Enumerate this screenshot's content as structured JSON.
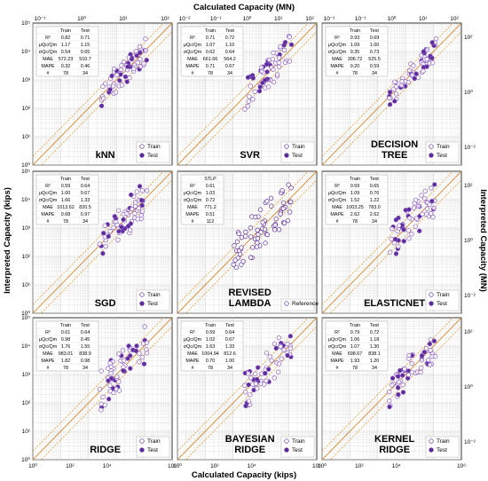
{
  "figure": {
    "top_title": "Calculated Capacity (MN)",
    "bottom_title": "Calculated Capacity (kips)",
    "left_title": "Interpreted Capacity (kips)",
    "right_title": "Interpreted Capacity (MN)",
    "kips_ticks": [
      "10⁰",
      "10²",
      "10⁴",
      "10⁶"
    ],
    "kips_ticks_y": [
      "10⁰",
      "10¹",
      "10²",
      "10³",
      "10⁴",
      "10⁵"
    ],
    "mn_ticks": [
      "10⁻²",
      "10⁰",
      "10²"
    ],
    "mn_ticks_top": [
      "10⁻¹",
      "10⁰",
      "10¹",
      "10²"
    ],
    "mn_ticks_top_c": [
      "10⁻²",
      "10⁻¹",
      "10⁰",
      "10¹",
      "10²"
    ]
  },
  "chart_data": [
    {
      "type": "scatter",
      "title": "kNN",
      "legend_loc": "bottom-right",
      "legend": [
        "Train",
        "Test"
      ],
      "metrics_header": [
        "",
        "Train",
        "Test"
      ],
      "metrics": [
        [
          "R²",
          "0.82",
          "0.71"
        ],
        [
          "μQc/Qm",
          "1.17",
          "1.15"
        ],
        [
          "σQc/Qm",
          "0.54",
          "0.65"
        ],
        [
          "MAE",
          "572.23",
          "510.7"
        ],
        [
          "MAPE",
          "0.32",
          "0.46"
        ],
        [
          "#",
          "78",
          "34"
        ]
      ],
      "xlim_log10": [
        0,
        5
      ],
      "ylim_log10": [
        0,
        5
      ],
      "seed": 11,
      "spread": 0.22
    },
    {
      "type": "scatter",
      "title": "SVR",
      "legend_loc": "bottom-right",
      "legend": [
        "Train",
        "Test"
      ],
      "metrics_header": [
        "",
        "Train",
        "Test"
      ],
      "metrics": [
        [
          "R²",
          "0.71",
          "0.72"
        ],
        [
          "μQc/Qm",
          "1.07",
          "1.10"
        ],
        [
          "σQc/Qm",
          "0.62",
          "0.64"
        ],
        [
          "MAE",
          "661.66",
          "564.2"
        ],
        [
          "MAPE",
          "0.71",
          "0.67"
        ],
        [
          "#",
          "78",
          "34"
        ]
      ],
      "xlim_log10": [
        0,
        5
      ],
      "ylim_log10": [
        0,
        5
      ],
      "seed": 23,
      "spread": 0.26
    },
    {
      "type": "scatter",
      "title": "DECISION TREE",
      "legend_loc": "bottom-right",
      "legend": [
        "Train",
        "Test"
      ],
      "metrics_header": [
        "",
        "Train",
        "Test"
      ],
      "metrics": [
        [
          "R²",
          "0.93",
          "0.69"
        ],
        [
          "μQc/Qm",
          "1.09",
          "1.00"
        ],
        [
          "σQc/Qm",
          "0.35",
          "0.73"
        ],
        [
          "MAE",
          "306.72",
          "525.5"
        ],
        [
          "MAPE",
          "0.20",
          "0.59"
        ],
        [
          "#",
          "78",
          "34"
        ]
      ],
      "xlim_log10": [
        0,
        5
      ],
      "ylim_log10": [
        0,
        5
      ],
      "seed": 37,
      "spread": 0.18
    },
    {
      "type": "scatter",
      "title": "SGD",
      "legend_loc": "bottom-right",
      "legend": [
        "Train",
        "Test"
      ],
      "metrics_header": [
        "",
        "Train",
        "Test"
      ],
      "metrics": [
        [
          "R²",
          "0.59",
          "0.64"
        ],
        [
          "μQc/Qm",
          "1.00",
          "0.67"
        ],
        [
          "σQc/Qm",
          "1.66",
          "1.33"
        ],
        [
          "MAE",
          "1013.62",
          "820.5"
        ],
        [
          "MAPE",
          "0.68",
          "0.97"
        ],
        [
          "#",
          "78",
          "34"
        ]
      ],
      "xlim_log10": [
        0,
        5
      ],
      "ylim_log10": [
        0,
        5
      ],
      "seed": 41,
      "spread": 0.3
    },
    {
      "type": "scatter",
      "title": "REVISED LAMBDA",
      "legend_loc": "bottom-right",
      "legend": [
        "Reference"
      ],
      "metrics_header": [
        "",
        "STLP"
      ],
      "metrics": [
        [
          "R²",
          "0.61"
        ],
        [
          "μQc/Qm",
          "1.03"
        ],
        [
          "σQc/Qm",
          "0.72"
        ],
        [
          "MAE",
          "771.2"
        ],
        [
          "MAPE",
          "0.51"
        ],
        [
          "#",
          "112"
        ]
      ],
      "xlim_log10": [
        0,
        5
      ],
      "ylim_log10": [
        0,
        5
      ],
      "seed": 53,
      "spread": 0.34
    },
    {
      "type": "scatter",
      "title": "ELASTICNET",
      "legend_loc": "bottom-right",
      "legend": [
        "Train",
        "Test"
      ],
      "metrics_header": [
        "",
        "Train",
        "Test"
      ],
      "metrics": [
        [
          "R²",
          "0.59",
          "0.65"
        ],
        [
          "μQc/Qm",
          "1.09",
          "0.76"
        ],
        [
          "σQc/Qm",
          "1.52",
          "1.22"
        ],
        [
          "MAE",
          "1003.25",
          "783.0"
        ],
        [
          "MAPE",
          "2.62",
          "2.62"
        ],
        [
          "#",
          "78",
          "34"
        ]
      ],
      "xlim_log10": [
        0,
        5
      ],
      "ylim_log10": [
        0,
        5
      ],
      "seed": 61,
      "spread": 0.3
    },
    {
      "type": "scatter",
      "title": "RIDGE",
      "legend_loc": "bottom-right",
      "legend": [
        "Train",
        "Test"
      ],
      "metrics_header": [
        "",
        "Train",
        "Test"
      ],
      "metrics": [
        [
          "R²",
          "0.61",
          "0.64"
        ],
        [
          "μQc/Qm",
          "0.98",
          "0.45"
        ],
        [
          "σQc/Qm",
          "1.76",
          "1.55"
        ],
        [
          "MAE",
          "983.01",
          "838.9"
        ],
        [
          "MAPE",
          "1.82",
          "0.98"
        ],
        [
          "#",
          "78",
          "34"
        ]
      ],
      "xlim_log10": [
        0,
        5
      ],
      "ylim_log10": [
        0,
        5
      ],
      "seed": 71,
      "spread": 0.32
    },
    {
      "type": "scatter",
      "title": "BAYESIAN RIDGE",
      "legend_loc": "bottom-right",
      "legend": [
        "Train",
        "Test"
      ],
      "metrics_header": [
        "",
        "Train",
        "Test"
      ],
      "metrics": [
        [
          "R²",
          "0.59",
          "0.64"
        ],
        [
          "μQc/Qm",
          "1.02",
          "0.67"
        ],
        [
          "σQc/Qm",
          "1.63",
          "1.33"
        ],
        [
          "MAE",
          "1004.94",
          "812.6"
        ],
        [
          "MAPE",
          "0.70",
          "1.00"
        ],
        [
          "#",
          "78",
          "34"
        ]
      ],
      "xlim_log10": [
        0,
        5
      ],
      "ylim_log10": [
        0,
        5
      ],
      "seed": 83,
      "spread": 0.3
    },
    {
      "type": "scatter",
      "title": "KERNEL RIDGE",
      "legend_loc": "bottom-right",
      "legend": [
        "Train",
        "Test"
      ],
      "metrics_header": [
        "",
        "Train",
        "Test"
      ],
      "metrics": [
        [
          "R²",
          "0.79",
          "0.72"
        ],
        [
          "μQc/Qm",
          "1.06",
          "1.18"
        ],
        [
          "σQc/Qm",
          "1.07",
          "1.30"
        ],
        [
          "MAE",
          "698.67",
          "838.1"
        ],
        [
          "MAPE",
          "1.93",
          "1.20"
        ],
        [
          "#",
          "78",
          "34"
        ]
      ],
      "xlim_log10": [
        0,
        5
      ],
      "ylim_log10": [
        0,
        5
      ],
      "seed": 97,
      "spread": 0.26
    }
  ],
  "colors": {
    "series": "#5b2c9a",
    "series_light": "#8a5cc2",
    "bound_line": "#e0a040",
    "identity_line": "#d8862a",
    "grid": "#cccccc"
  }
}
